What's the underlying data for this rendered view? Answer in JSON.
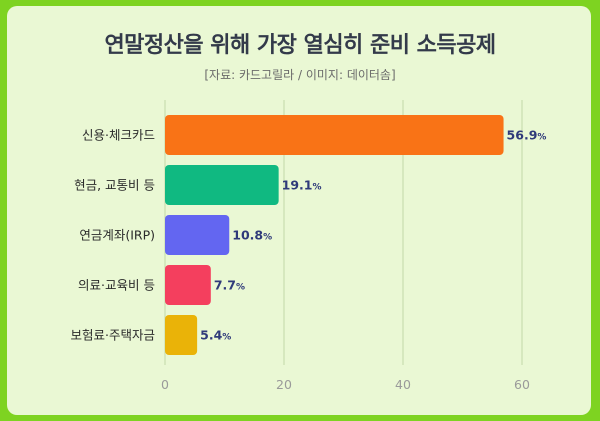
{
  "title": "연말정산을 위해 가장 열심히 준비 소득공제",
  "subtitle": "[자료: 카드고릴라 / 이미지: 데이터솜]",
  "colors": {
    "background": "#7ed321",
    "panel": "#eaf8d4",
    "gridline": "#c9ddb0",
    "value_text": "#2f3a7a"
  },
  "chart_data": {
    "type": "bar",
    "orientation": "horizontal",
    "title": "연말정산을 위해 가장 열심히 준비 소득공제",
    "subtitle": "[자료: 카드고릴라 / 이미지: 데이터솜]",
    "categories": [
      "신용·체크카드",
      "현금, 교통비 등",
      "연금계좌(IRP)",
      "의료·교육비 등",
      "보험료·주택자금"
    ],
    "values": [
      56.9,
      19.1,
      10.8,
      7.7,
      5.4
    ],
    "value_unit": "%",
    "bar_colors": [
      "#f97316",
      "#10b981",
      "#6366f1",
      "#f43f5e",
      "#eab308"
    ],
    "xlim": [
      0,
      60
    ],
    "xticks": [
      0,
      20,
      40,
      60
    ],
    "grid": true,
    "xlabel": "",
    "ylabel": ""
  }
}
